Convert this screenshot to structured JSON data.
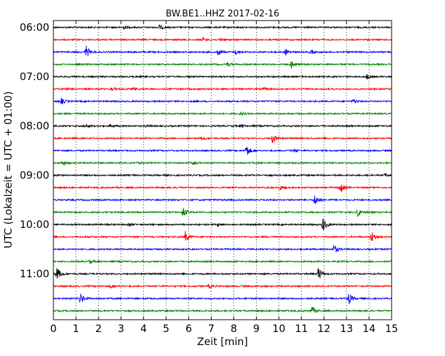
{
  "chart_data": {
    "type": "line",
    "title": "BW.BE1..HHZ 2017-02-16",
    "xlabel": "Zeit  [min]",
    "ylabel": "UTC (Lokalzeit = UTC + 01:00)",
    "xlim": [
      0,
      15
    ],
    "x_ticks": [
      "0",
      "1",
      "2",
      "3",
      "4",
      "5",
      "6",
      "7",
      "8",
      "9",
      "10",
      "11",
      "12",
      "13",
      "14",
      "15"
    ],
    "y_tick_labels": [
      "06:00",
      "07:00",
      "08:00",
      "09:00",
      "10:00",
      "11:00"
    ],
    "grid": "vertical dotted",
    "trace_colors": [
      "#000000",
      "#ff0000",
      "#0000ff",
      "#008000"
    ],
    "traces": [
      {
        "start": "06:00",
        "events": [
          [
            3.1,
            0.25
          ],
          [
            4.7,
            0.3
          ]
        ]
      },
      {
        "start": "06:15",
        "events": [
          [
            6.6,
            0.25
          ],
          [
            7.4,
            0.2
          ]
        ]
      },
      {
        "start": "06:30",
        "events": [
          [
            1.45,
            0.9
          ],
          [
            7.3,
            0.45
          ],
          [
            8.1,
            0.35
          ],
          [
            10.3,
            0.45
          ],
          [
            11.4,
            0.3
          ]
        ]
      },
      {
        "start": "06:45",
        "events": [
          [
            7.7,
            0.35
          ],
          [
            10.55,
            0.55
          ]
        ]
      },
      {
        "start": "07:00",
        "events": [
          [
            13.9,
            0.35
          ]
        ]
      },
      {
        "start": "07:15",
        "events": [
          [
            0.55,
            0.2
          ],
          [
            2.55,
            0.2
          ],
          [
            3.55,
            0.2
          ],
          [
            9.3,
            0.15
          ]
        ]
      },
      {
        "start": "07:30",
        "events": [
          [
            0.35,
            0.4
          ],
          [
            13.3,
            0.35
          ]
        ]
      },
      {
        "start": "07:45",
        "events": [
          [
            8.3,
            0.2
          ]
        ]
      },
      {
        "start": "08:00",
        "events": [
          [
            1.4,
            0.25
          ],
          [
            2.5,
            0.15
          ],
          [
            4.1,
            0.15
          ],
          [
            8.35,
            0.15
          ]
        ]
      },
      {
        "start": "08:15",
        "events": [
          [
            6.6,
            0.2
          ],
          [
            9.7,
            0.75
          ]
        ]
      },
      {
        "start": "08:30",
        "events": [
          [
            8.55,
            0.95
          ],
          [
            10.7,
            0.2
          ]
        ]
      },
      {
        "start": "08:45",
        "events": [
          [
            0.4,
            0.35
          ],
          [
            3.8,
            0.15
          ],
          [
            6.2,
            0.25
          ]
        ]
      },
      {
        "start": "09:00",
        "events": [
          [
            14.7,
            0.2
          ]
        ]
      },
      {
        "start": "09:15",
        "events": [
          [
            10.05,
            0.3
          ],
          [
            12.7,
            0.9
          ]
        ]
      },
      {
        "start": "09:30",
        "events": [
          [
            11.6,
            0.9
          ]
        ]
      },
      {
        "start": "09:45",
        "events": [
          [
            5.75,
            0.7
          ],
          [
            13.5,
            0.7
          ]
        ]
      },
      {
        "start": "10:00",
        "events": [
          [
            3.3,
            0.25
          ],
          [
            7.3,
            0.2
          ],
          [
            11.95,
            1.0
          ]
        ]
      },
      {
        "start": "10:15",
        "events": [
          [
            5.85,
            0.75
          ],
          [
            14.1,
            0.85
          ]
        ]
      },
      {
        "start": "10:30",
        "events": [
          [
            12.45,
            0.7
          ]
        ]
      },
      {
        "start": "10:45",
        "events": [
          [
            1.6,
            0.3
          ],
          [
            14.95,
            0.2
          ]
        ]
      },
      {
        "start": "11:00",
        "events": [
          [
            0.15,
            1.0
          ],
          [
            11.75,
            1.0
          ]
        ]
      },
      {
        "start": "11:15",
        "events": [
          [
            6.9,
            0.25
          ],
          [
            2.55,
            0.25
          ]
        ]
      },
      {
        "start": "11:30",
        "events": [
          [
            1.2,
            0.85
          ],
          [
            13.1,
            0.75
          ]
        ]
      },
      {
        "start": "11:45",
        "events": [
          [
            11.45,
            0.7
          ]
        ]
      }
    ]
  }
}
